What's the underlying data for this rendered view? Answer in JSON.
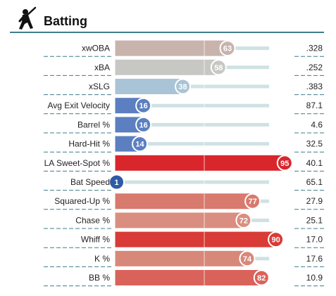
{
  "section": {
    "title": "Batting",
    "icon": "batter-icon",
    "accent_color": "#3f7c8a"
  },
  "chart_data": {
    "type": "bar",
    "orientation": "horizontal",
    "title": "Batting",
    "xlim": [
      0,
      100
    ],
    "reference_lines": [
      50
    ],
    "categories": [
      "xwOBA",
      "xBA",
      "xSLG",
      "Avg Exit Velocity",
      "Barrel %",
      "Hard-Hit %",
      "LA Sweet-Spot %",
      "Bat Speed",
      "Squared-Up %",
      "Chase %",
      "Whiff %",
      "K %",
      "BB %"
    ],
    "percentiles": [
      63,
      58,
      38,
      16,
      16,
      14,
      95,
      1,
      77,
      72,
      90,
      74,
      82
    ],
    "stat_values": [
      ".328",
      ".252",
      ".383",
      "87.1",
      "4.6",
      "32.5",
      "40.1",
      "65.1",
      "27.9",
      "25.1",
      "17.0",
      "17.6",
      "10.9"
    ],
    "colors": [
      "#c9b3ad",
      "#c7c7c4",
      "#a9c4d6",
      "#5b7fc0",
      "#5b7fc0",
      "#5b7fc0",
      "#d9262c",
      "#2f5aa5",
      "#d87a6e",
      "#da8e7f",
      "#d93b36",
      "#d88879",
      "#d9635b"
    ]
  }
}
